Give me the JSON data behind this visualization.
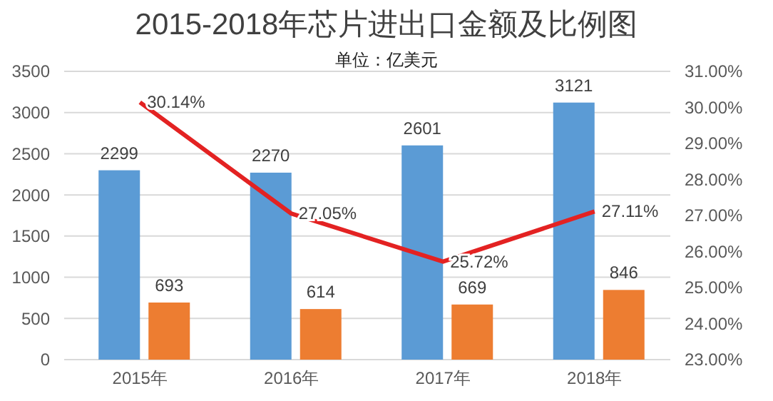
{
  "chart_data": {
    "type": "bar",
    "title": "2015-2018年芯片进出口金额及比例图",
    "subtitle": "单位：亿美元",
    "categories": [
      "2015年",
      "2016年",
      "2017年",
      "2018年"
    ],
    "series": [
      {
        "color": "#5b9bd5",
        "values": [
          2299,
          2270,
          2601,
          3121
        ]
      },
      {
        "color": "#ed7d31",
        "values": [
          693,
          614,
          669,
          846
        ]
      },
      {
        "type": "line",
        "axis": "y2",
        "color": "#e32222",
        "values": [
          30.14,
          27.05,
          25.72,
          27.11
        ],
        "value_labels": [
          "30.14%",
          "27.05%",
          "25.72%",
          "27.11%"
        ]
      }
    ],
    "ylim": [
      0,
      3500
    ],
    "yticks": [
      0,
      500,
      1000,
      1500,
      2000,
      2500,
      3000,
      3500
    ],
    "y2lim": [
      23,
      31
    ],
    "y2ticks": [
      {
        "value": 23,
        "label": "23.00%"
      },
      {
        "value": 24,
        "label": "24.00%"
      },
      {
        "value": 25,
        "label": "25.00%"
      },
      {
        "value": 26,
        "label": "26.00%"
      },
      {
        "value": 27,
        "label": "27.00%"
      },
      {
        "value": 28,
        "label": "28.00%"
      },
      {
        "value": 29,
        "label": "29.00%"
      },
      {
        "value": 30,
        "label": "30.00%"
      },
      {
        "value": 31,
        "label": "31.00%"
      }
    ],
    "grid": "y",
    "data_labels": true
  }
}
